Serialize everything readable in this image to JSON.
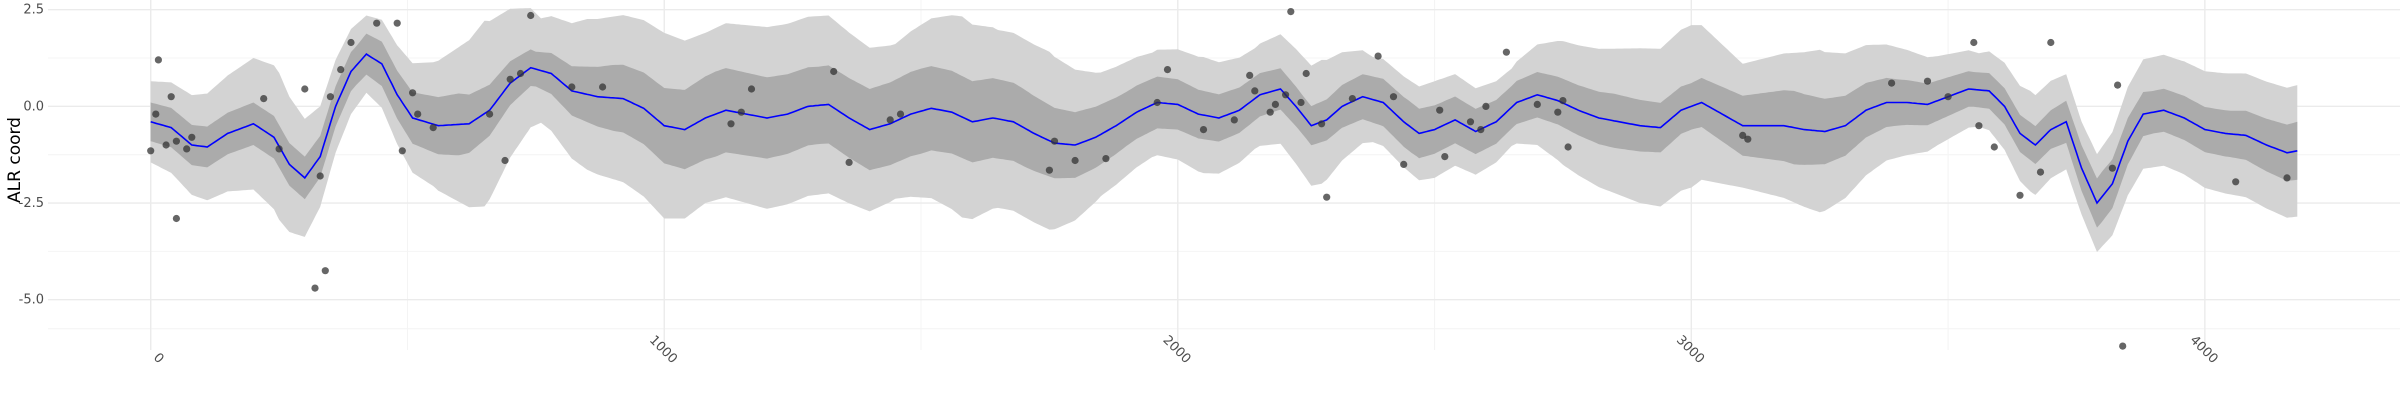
{
  "colors": {
    "background": "#ffffff",
    "grid_major": "#ebebeb",
    "grid_minor": "#f4f4f4",
    "outer_band": "#d3d3d3",
    "inner_band": "#ababab",
    "mean_line": "#0000ff",
    "points": "#333333"
  },
  "chart_data": {
    "type": "line",
    "title": "",
    "xlabel": "",
    "ylabel": "ALR coord",
    "xlim": [
      -200,
      4380
    ],
    "ylim": [
      -6.3,
      2.75
    ],
    "x_ticks": [
      0,
      1000,
      2000,
      3000,
      4000
    ],
    "x_tick_labels": [
      "0",
      "1000",
      "2000",
      "3000",
      "4000"
    ],
    "y_ticks": [
      2.5,
      0.0,
      -2.5,
      -5.0
    ],
    "y_tick_labels": [
      "2.5",
      "0.0",
      "-2.5",
      "-5.0"
    ],
    "grid": true,
    "legend": "none",
    "mean": [
      [
        0,
        -0.4
      ],
      [
        40,
        -0.55
      ],
      [
        80,
        -1.0
      ],
      [
        110,
        -1.05
      ],
      [
        150,
        -0.7
      ],
      [
        200,
        -0.45
      ],
      [
        240,
        -0.8
      ],
      [
        270,
        -1.5
      ],
      [
        300,
        -1.85
      ],
      [
        330,
        -1.3
      ],
      [
        360,
        0.0
      ],
      [
        390,
        0.9
      ],
      [
        420,
        1.35
      ],
      [
        450,
        1.1
      ],
      [
        480,
        0.3
      ],
      [
        510,
        -0.3
      ],
      [
        560,
        -0.5
      ],
      [
        620,
        -0.45
      ],
      [
        660,
        -0.1
      ],
      [
        700,
        0.6
      ],
      [
        740,
        1.0
      ],
      [
        780,
        0.85
      ],
      [
        820,
        0.4
      ],
      [
        870,
        0.25
      ],
      [
        920,
        0.2
      ],
      [
        960,
        -0.05
      ],
      [
        1000,
        -0.5
      ],
      [
        1040,
        -0.6
      ],
      [
        1080,
        -0.3
      ],
      [
        1120,
        -0.1
      ],
      [
        1160,
        -0.2
      ],
      [
        1200,
        -0.3
      ],
      [
        1240,
        -0.2
      ],
      [
        1280,
        0.0
      ],
      [
        1320,
        0.05
      ],
      [
        1360,
        -0.3
      ],
      [
        1400,
        -0.6
      ],
      [
        1440,
        -0.45
      ],
      [
        1480,
        -0.2
      ],
      [
        1520,
        -0.05
      ],
      [
        1560,
        -0.15
      ],
      [
        1600,
        -0.4
      ],
      [
        1640,
        -0.3
      ],
      [
        1680,
        -0.4
      ],
      [
        1720,
        -0.7
      ],
      [
        1760,
        -0.95
      ],
      [
        1800,
        -1.0
      ],
      [
        1840,
        -0.8
      ],
      [
        1880,
        -0.5
      ],
      [
        1920,
        -0.15
      ],
      [
        1960,
        0.1
      ],
      [
        2000,
        0.05
      ],
      [
        2040,
        -0.2
      ],
      [
        2080,
        -0.3
      ],
      [
        2120,
        -0.1
      ],
      [
        2160,
        0.3
      ],
      [
        2200,
        0.45
      ],
      [
        2230,
        0.0
      ],
      [
        2260,
        -0.5
      ],
      [
        2290,
        -0.35
      ],
      [
        2320,
        0.0
      ],
      [
        2360,
        0.25
      ],
      [
        2400,
        0.1
      ],
      [
        2440,
        -0.4
      ],
      [
        2470,
        -0.7
      ],
      [
        2500,
        -0.6
      ],
      [
        2540,
        -0.35
      ],
      [
        2580,
        -0.65
      ],
      [
        2620,
        -0.4
      ],
      [
        2660,
        0.1
      ],
      [
        2700,
        0.3
      ],
      [
        2740,
        0.15
      ],
      [
        2780,
        -0.1
      ],
      [
        2820,
        -0.3
      ],
      [
        2860,
        -0.4
      ],
      [
        2900,
        -0.5
      ],
      [
        2940,
        -0.55
      ],
      [
        2980,
        -0.1
      ],
      [
        3020,
        0.1
      ],
      [
        3060,
        -0.2
      ],
      [
        3100,
        -0.5
      ],
      [
        3140,
        -0.5
      ],
      [
        3180,
        -0.5
      ],
      [
        3220,
        -0.6
      ],
      [
        3260,
        -0.65
      ],
      [
        3300,
        -0.5
      ],
      [
        3340,
        -0.1
      ],
      [
        3380,
        0.1
      ],
      [
        3420,
        0.1
      ],
      [
        3460,
        0.05
      ],
      [
        3500,
        0.25
      ],
      [
        3540,
        0.45
      ],
      [
        3580,
        0.4
      ],
      [
        3610,
        0.0
      ],
      [
        3640,
        -0.7
      ],
      [
        3670,
        -1.0
      ],
      [
        3700,
        -0.6
      ],
      [
        3730,
        -0.4
      ],
      [
        3760,
        -1.6
      ],
      [
        3790,
        -2.5
      ],
      [
        3820,
        -2.0
      ],
      [
        3850,
        -0.9
      ],
      [
        3880,
        -0.2
      ],
      [
        3920,
        -0.1
      ],
      [
        3960,
        -0.3
      ],
      [
        4000,
        -0.6
      ],
      [
        4040,
        -0.7
      ],
      [
        4080,
        -0.75
      ],
      [
        4120,
        -1.0
      ],
      [
        4160,
        -1.2
      ],
      [
        4180,
        -1.15
      ]
    ],
    "inner_band_halfwidth": [
      [
        0,
        0.5
      ],
      [
        200,
        0.55
      ],
      [
        300,
        0.55
      ],
      [
        400,
        0.5
      ],
      [
        600,
        0.8
      ],
      [
        750,
        0.45
      ],
      [
        900,
        0.85
      ],
      [
        1100,
        1.1
      ],
      [
        1300,
        1.0
      ],
      [
        1500,
        1.1
      ],
      [
        1700,
        1.0
      ],
      [
        1900,
        0.7
      ],
      [
        2100,
        0.6
      ],
      [
        2250,
        0.5
      ],
      [
        2450,
        0.65
      ],
      [
        2650,
        0.55
      ],
      [
        2850,
        0.7
      ],
      [
        3000,
        0.6
      ],
      [
        3200,
        0.95
      ],
      [
        3400,
        0.6
      ],
      [
        3550,
        0.45
      ],
      [
        3700,
        0.5
      ],
      [
        3800,
        0.65
      ],
      [
        3900,
        0.55
      ],
      [
        4050,
        0.6
      ],
      [
        4180,
        0.75
      ]
    ],
    "outer_band_halfwidth": [
      [
        0,
        1.05
      ],
      [
        150,
        1.5
      ],
      [
        250,
        1.9
      ],
      [
        330,
        1.3
      ],
      [
        420,
        1.0
      ],
      [
        550,
        1.6
      ],
      [
        650,
        2.4
      ],
      [
        760,
        1.35
      ],
      [
        850,
        1.95
      ],
      [
        1000,
        2.4
      ],
      [
        1080,
        2.2
      ],
      [
        1200,
        2.35
      ],
      [
        1320,
        2.3
      ],
      [
        1450,
        2.0
      ],
      [
        1580,
        2.6
      ],
      [
        1650,
        2.3
      ],
      [
        1750,
        2.3
      ],
      [
        1850,
        1.6
      ],
      [
        1950,
        1.35
      ],
      [
        2050,
        1.5
      ],
      [
        2150,
        1.3
      ],
      [
        2280,
        1.6
      ],
      [
        2380,
        1.1
      ],
      [
        2500,
        1.25
      ],
      [
        2650,
        1.0
      ],
      [
        2750,
        1.6
      ],
      [
        2900,
        2.0
      ],
      [
        3000,
        2.1
      ],
      [
        3100,
        1.6
      ],
      [
        3250,
        2.1
      ],
      [
        3380,
        1.5
      ],
      [
        3480,
        1.15
      ],
      [
        3560,
        0.95
      ],
      [
        3660,
        1.3
      ],
      [
        3760,
        1.2
      ],
      [
        3850,
        1.4
      ],
      [
        3950,
        1.45
      ],
      [
        4080,
        1.6
      ],
      [
        4180,
        1.7
      ]
    ],
    "points": [
      [
        0,
        -1.15
      ],
      [
        10,
        -0.2
      ],
      [
        15,
        1.2
      ],
      [
        30,
        -1.0
      ],
      [
        40,
        0.25
      ],
      [
        50,
        -0.9
      ],
      [
        50,
        -2.9
      ],
      [
        70,
        -1.1
      ],
      [
        80,
        -0.8
      ],
      [
        220,
        0.2
      ],
      [
        250,
        -1.1
      ],
      [
        300,
        0.45
      ],
      [
        320,
        -4.7
      ],
      [
        330,
        -1.8
      ],
      [
        340,
        -4.25
      ],
      [
        350,
        0.25
      ],
      [
        370,
        0.95
      ],
      [
        390,
        1.65
      ],
      [
        440,
        2.15
      ],
      [
        480,
        2.15
      ],
      [
        490,
        -1.15
      ],
      [
        510,
        0.35
      ],
      [
        520,
        -0.2
      ],
      [
        550,
        -0.55
      ],
      [
        660,
        -0.2
      ],
      [
        690,
        -1.4
      ],
      [
        700,
        0.7
      ],
      [
        720,
        0.85
      ],
      [
        740,
        2.35
      ],
      [
        820,
        0.5
      ],
      [
        880,
        0.5
      ],
      [
        1130,
        -0.45
      ],
      [
        1150,
        -0.15
      ],
      [
        1170,
        0.45
      ],
      [
        1330,
        0.9
      ],
      [
        1360,
        -1.45
      ],
      [
        1440,
        -0.35
      ],
      [
        1460,
        -0.2
      ],
      [
        1750,
        -1.65
      ],
      [
        1760,
        -0.9
      ],
      [
        1800,
        -1.4
      ],
      [
        1860,
        -1.35
      ],
      [
        1960,
        0.1
      ],
      [
        1980,
        0.95
      ],
      [
        2050,
        -0.6
      ],
      [
        2110,
        -0.35
      ],
      [
        2140,
        0.8
      ],
      [
        2150,
        0.4
      ],
      [
        2180,
        -0.15
      ],
      [
        2190,
        0.05
      ],
      [
        2210,
        0.3
      ],
      [
        2220,
        2.45
      ],
      [
        2240,
        0.1
      ],
      [
        2250,
        0.85
      ],
      [
        2280,
        -0.45
      ],
      [
        2290,
        -2.35
      ],
      [
        2340,
        0.2
      ],
      [
        2390,
        1.3
      ],
      [
        2420,
        0.25
      ],
      [
        2440,
        -1.5
      ],
      [
        2510,
        -0.1
      ],
      [
        2520,
        -1.3
      ],
      [
        2570,
        -0.4
      ],
      [
        2590,
        -0.6
      ],
      [
        2600,
        0.0
      ],
      [
        2640,
        1.4
      ],
      [
        2700,
        0.05
      ],
      [
        2740,
        -0.15
      ],
      [
        2750,
        0.15
      ],
      [
        2760,
        -1.05
      ],
      [
        3100,
        -0.75
      ],
      [
        3110,
        -0.85
      ],
      [
        3390,
        0.6
      ],
      [
        3460,
        0.65
      ],
      [
        3500,
        0.25
      ],
      [
        3550,
        1.65
      ],
      [
        3560,
        -0.5
      ],
      [
        3590,
        -1.05
      ],
      [
        3640,
        -2.3
      ],
      [
        3680,
        -1.7
      ],
      [
        3700,
        1.65
      ],
      [
        3820,
        -1.6
      ],
      [
        3830,
        0.55
      ],
      [
        3840,
        -6.2
      ],
      [
        4060,
        -1.95
      ],
      [
        4160,
        -1.85
      ]
    ]
  }
}
